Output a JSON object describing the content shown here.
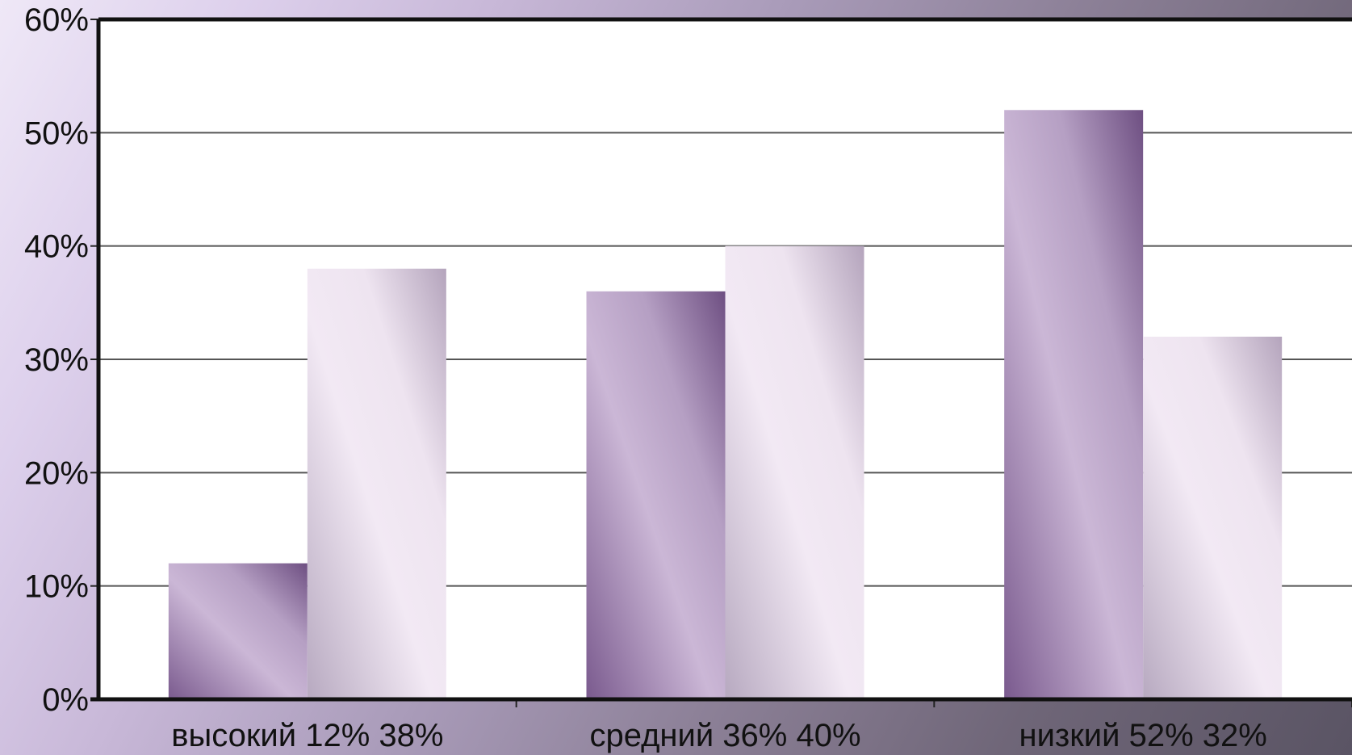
{
  "chart_data": {
    "type": "bar",
    "title": "",
    "xlabel": "",
    "ylabel": "",
    "categories": [
      "высокий 12% 38%",
      "средний 36% 40%",
      "низкий 52% 32%"
    ],
    "series": [
      {
        "values": [
          12,
          36,
          52
        ],
        "color": "#8e6fa0"
      },
      {
        "values": [
          38,
          40,
          32
        ],
        "color": "#e6dcea"
      }
    ],
    "ylim": [
      0,
      60
    ],
    "yticks": [
      "0%",
      "10%",
      "20%",
      "30%",
      "40%",
      "50%",
      "60%"
    ],
    "grid": true,
    "legend": "none"
  }
}
